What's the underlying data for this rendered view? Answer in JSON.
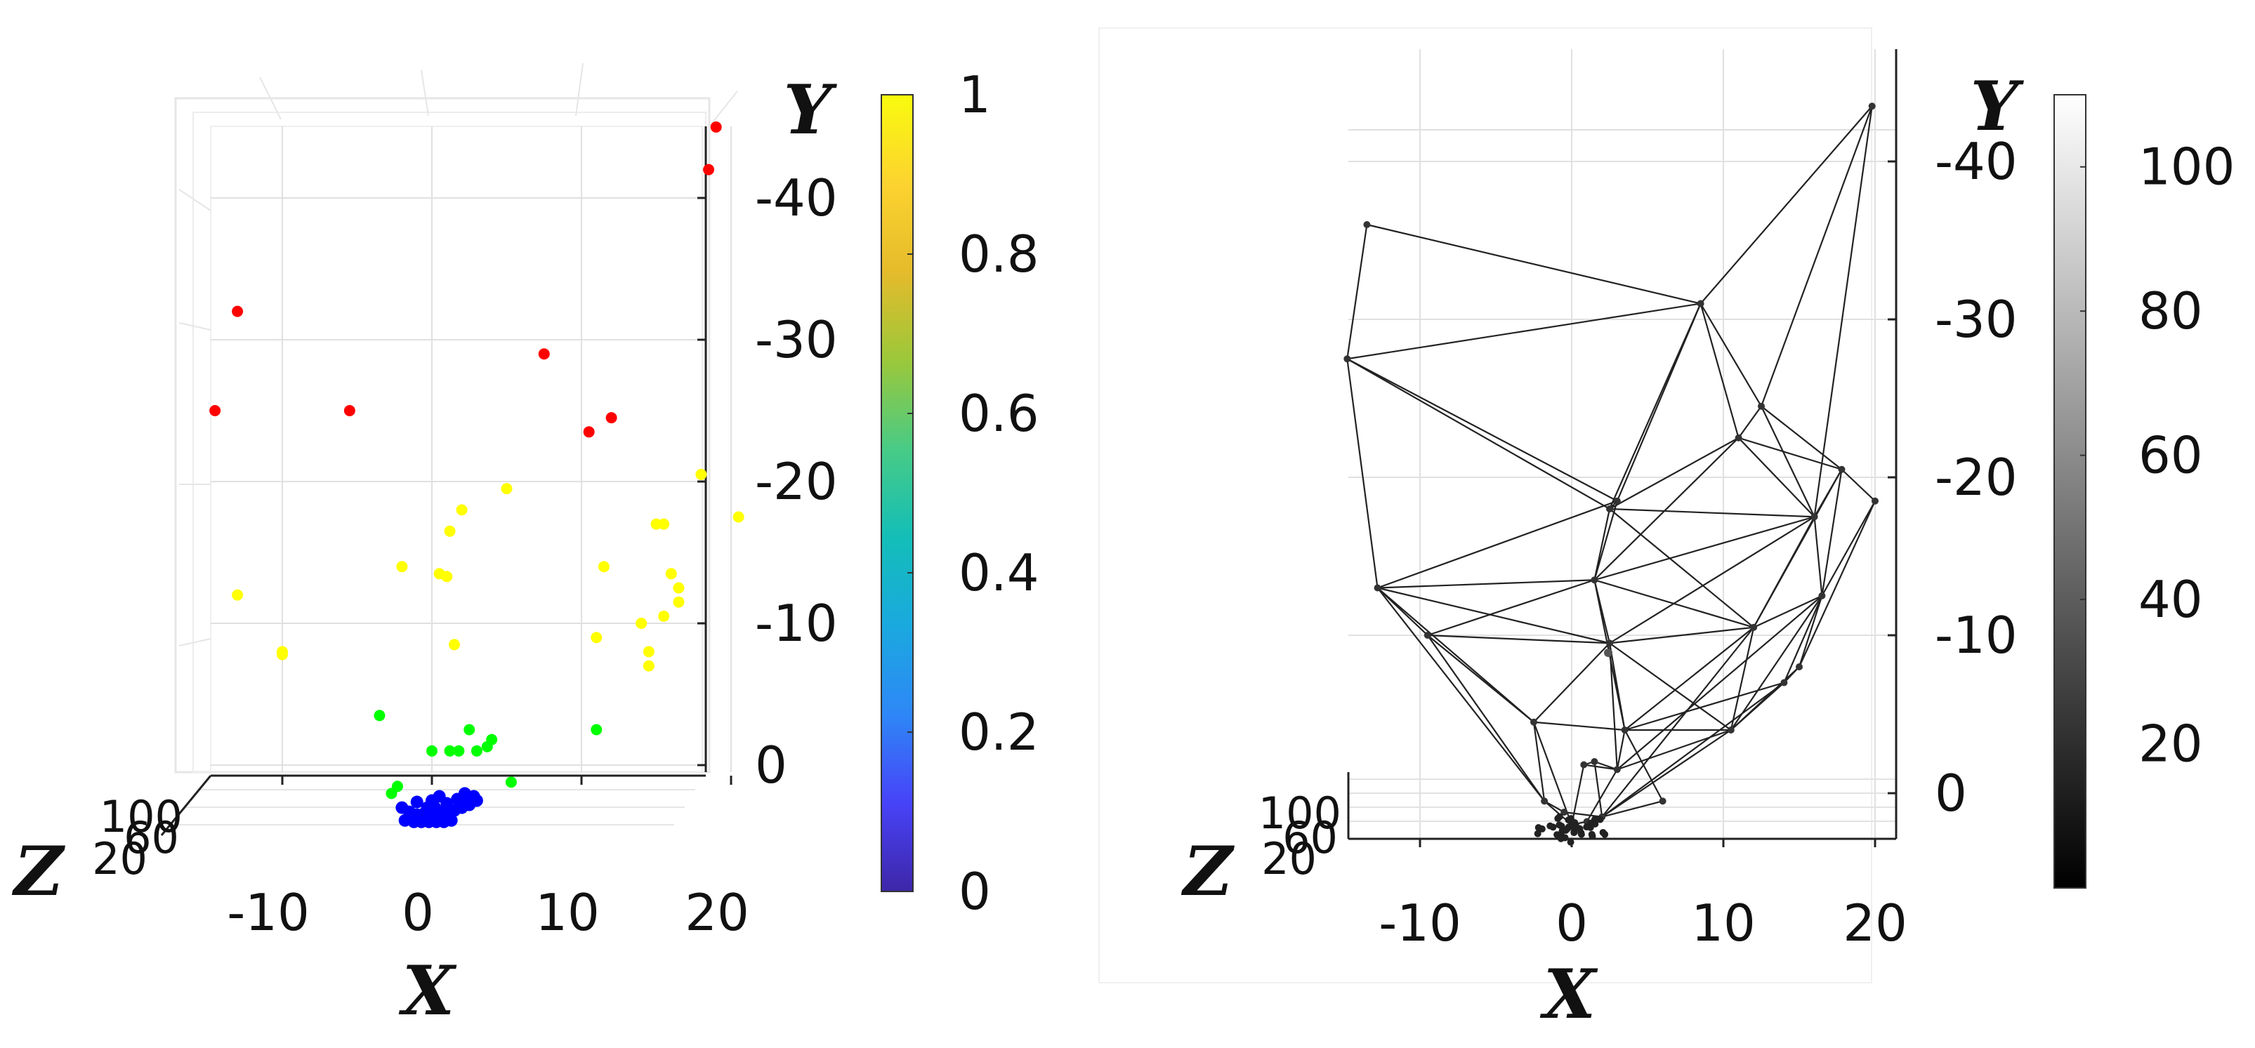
{
  "colors": {
    "red": "#ff0000",
    "yellow": "#ffff00",
    "green": "#00ff00",
    "blue": "#0000ff",
    "edge": "#222222",
    "grid": "#e0e0e0",
    "parula": [
      "#3e26a8",
      "#4743f8",
      "#2e87f7",
      "#1aa9df",
      "#13beb8",
      "#48cb86",
      "#9bc83a",
      "#e5bb2b",
      "#fcd32f",
      "#f9fb0e"
    ]
  },
  "chart_data": [
    {
      "type": "scatter",
      "view": "3d-top",
      "xlabel": "X",
      "ylabel": "Y",
      "zlabel": "Z",
      "xlim": [
        -15,
        20
      ],
      "ylim": [
        -46,
        0
      ],
      "y_direction": "reversed",
      "x_ticks": [
        -10,
        0,
        10,
        20
      ],
      "y_ticks": [
        -40,
        -30,
        -20,
        -10,
        0
      ],
      "z_ticks": [
        100,
        60,
        20
      ],
      "grid": true,
      "colorbar": {
        "colormap": "parula",
        "range": [
          0,
          1
        ],
        "ticks": [
          0,
          0.2,
          0.4,
          0.6,
          0.8,
          1
        ],
        "tick_labels": [
          "0",
          "0.2",
          "0.4",
          "0.6",
          "0.8",
          "1"
        ]
      },
      "series": [
        {
          "color": "red",
          "points": [
            [
              19,
              -45
            ],
            [
              18.5,
              -42
            ],
            [
              -13,
              -32
            ],
            [
              -14.5,
              -25
            ],
            [
              -5.5,
              -25
            ],
            [
              7.5,
              -29
            ],
            [
              12,
              -24.5
            ],
            [
              10.5,
              -23.5
            ]
          ]
        },
        {
          "color": "yellow",
          "points": [
            [
              18,
              -20.5
            ],
            [
              20.5,
              -17.5
            ],
            [
              5,
              -19.5
            ],
            [
              2,
              -18
            ],
            [
              1.2,
              -16.5
            ],
            [
              15,
              -17
            ],
            [
              15.5,
              -17
            ],
            [
              11.5,
              -14
            ],
            [
              -2,
              -14
            ],
            [
              0.5,
              -13.5
            ],
            [
              1,
              -13.3
            ],
            [
              -13,
              -12
            ],
            [
              16,
              -13.5
            ],
            [
              16.5,
              -12.5
            ],
            [
              16.5,
              -11.5
            ],
            [
              15.5,
              -10.5
            ],
            [
              14,
              -10
            ],
            [
              11,
              -9
            ],
            [
              -10,
              -8
            ],
            [
              -10,
              -7.8
            ],
            [
              1.5,
              -8.5
            ],
            [
              14.5,
              -8
            ],
            [
              14.5,
              -7
            ]
          ]
        },
        {
          "color": "green",
          "points": [
            [
              -3.5,
              -3.5
            ],
            [
              11,
              -2.5
            ],
            [
              2.5,
              -2.5
            ],
            [
              4,
              -1.8
            ],
            [
              3.7,
              -1.3
            ],
            [
              3,
              -1
            ],
            [
              0,
              -1
            ],
            [
              1.2,
              -1
            ],
            [
              1.8,
              -1
            ],
            [
              5.3,
              1.2
            ],
            [
              -2.3,
              1.5
            ],
            [
              -2.7,
              2
            ]
          ]
        },
        {
          "color": "blue",
          "points": [
            [
              -2,
              3
            ],
            [
              -1.5,
              3.3
            ],
            [
              -1,
              3.5
            ],
            [
              -0.5,
              3.4
            ],
            [
              0,
              3.5
            ],
            [
              0.5,
              3.3
            ],
            [
              1,
              3.4
            ],
            [
              1.5,
              3.2
            ],
            [
              2,
              3
            ],
            [
              2.5,
              2.8
            ],
            [
              3,
              2.5
            ],
            [
              -1.8,
              3.9
            ],
            [
              -1.2,
              4
            ],
            [
              -0.7,
              4
            ],
            [
              -0.2,
              4
            ],
            [
              0.3,
              4
            ],
            [
              0.8,
              4
            ],
            [
              1.3,
              3.9
            ],
            [
              2.2,
              2
            ],
            [
              2.8,
              2.2
            ],
            [
              -1,
              2.6
            ],
            [
              1,
              2.7
            ],
            [
              0,
              2.5
            ],
            [
              -0.3,
              3
            ],
            [
              0.2,
              3
            ],
            [
              1.7,
              2.4
            ],
            [
              2.4,
              2.5
            ],
            [
              0.5,
              2.2
            ]
          ]
        }
      ]
    },
    {
      "type": "network",
      "view": "3d-top",
      "xlabel": "X",
      "ylabel": "Y",
      "zlabel": "Z",
      "xlim": [
        -15,
        20
      ],
      "ylim": [
        -46,
        2
      ],
      "y_direction": "reversed",
      "x_ticks": [
        -10,
        0,
        10,
        20
      ],
      "y_ticks": [
        -40,
        -30,
        -20,
        -10,
        0
      ],
      "z_ticks": [
        100,
        60,
        20
      ],
      "grid": true,
      "colorbar": {
        "colormap": "gray",
        "range": [
          0,
          110
        ],
        "ticks": [
          20,
          40,
          60,
          80,
          100
        ],
        "tick_labels": [
          "20",
          "40",
          "60",
          "80",
          "100"
        ]
      },
      "nodes": [
        [
          19.8,
          -43.5
        ],
        [
          -13.5,
          -36
        ],
        [
          -14.8,
          -27.5
        ],
        [
          8.5,
          -31
        ],
        [
          12.5,
          -24.5
        ],
        [
          11,
          -22.5
        ],
        [
          17.8,
          -20.5
        ],
        [
          20,
          -18.5
        ],
        [
          16,
          -17.5
        ],
        [
          3,
          -18.5
        ],
        [
          2.5,
          -18
        ],
        [
          -12.8,
          -13
        ],
        [
          1.5,
          -13.5
        ],
        [
          16.5,
          -12.5
        ],
        [
          12,
          -10.5
        ],
        [
          -9.5,
          -10
        ],
        [
          2.5,
          -9.5
        ],
        [
          15,
          -8
        ],
        [
          14,
          -7
        ],
        [
          10.5,
          -4
        ],
        [
          -2.5,
          -4.5
        ],
        [
          3.5,
          -4
        ],
        [
          3,
          -1.5
        ],
        [
          1.5,
          -2
        ],
        [
          0.8,
          -1.8
        ],
        [
          6,
          0.5
        ],
        [
          -1.8,
          0.5
        ],
        [
          0,
          2
        ],
        [
          1,
          1.8
        ],
        [
          2,
          1.5
        ],
        [
          -0.5,
          1.2
        ]
      ],
      "edges": [
        [
          0,
          3
        ],
        [
          0,
          4
        ],
        [
          0,
          8
        ],
        [
          1,
          2
        ],
        [
          1,
          3
        ],
        [
          2,
          3
        ],
        [
          2,
          9
        ],
        [
          2,
          10
        ],
        [
          2,
          11
        ],
        [
          3,
          4
        ],
        [
          3,
          5
        ],
        [
          3,
          9
        ],
        [
          3,
          10
        ],
        [
          4,
          5
        ],
        [
          4,
          6
        ],
        [
          4,
          8
        ],
        [
          5,
          6
        ],
        [
          5,
          8
        ],
        [
          5,
          10
        ],
        [
          5,
          12
        ],
        [
          6,
          7
        ],
        [
          6,
          8
        ],
        [
          6,
          13
        ],
        [
          7,
          13
        ],
        [
          7,
          17
        ],
        [
          8,
          10
        ],
        [
          8,
          12
        ],
        [
          8,
          13
        ],
        [
          8,
          14
        ],
        [
          9,
          10
        ],
        [
          9,
          11
        ],
        [
          9,
          12
        ],
        [
          10,
          12
        ],
        [
          10,
          14
        ],
        [
          11,
          12
        ],
        [
          11,
          15
        ],
        [
          11,
          16
        ],
        [
          11,
          20
        ],
        [
          12,
          14
        ],
        [
          12,
          15
        ],
        [
          12,
          16
        ],
        [
          13,
          14
        ],
        [
          13,
          17
        ],
        [
          13,
          18
        ],
        [
          13,
          19
        ],
        [
          14,
          16
        ],
        [
          14,
          19
        ],
        [
          14,
          21
        ],
        [
          15,
          16
        ],
        [
          15,
          20
        ],
        [
          15,
          26
        ],
        [
          16,
          19
        ],
        [
          16,
          20
        ],
        [
          16,
          21
        ],
        [
          17,
          18
        ],
        [
          17,
          19
        ],
        [
          18,
          19
        ],
        [
          18,
          21
        ],
        [
          19,
          21
        ],
        [
          19,
          22
        ],
        [
          20,
          21
        ],
        [
          20,
          26
        ],
        [
          20,
          27
        ],
        [
          21,
          22
        ],
        [
          21,
          25
        ],
        [
          22,
          23
        ],
        [
          22,
          24
        ],
        [
          22,
          28
        ],
        [
          23,
          24
        ],
        [
          23,
          29
        ],
        [
          24,
          27
        ],
        [
          25,
          29
        ],
        [
          26,
          27
        ],
        [
          26,
          30
        ],
        [
          27,
          28
        ],
        [
          28,
          29
        ],
        [
          29,
          30
        ],
        [
          19,
          29
        ],
        [
          13,
          22
        ],
        [
          14,
          29
        ],
        [
          8,
          16
        ],
        [
          6,
          14
        ],
        [
          12,
          21
        ],
        [
          16,
          22
        ],
        [
          11,
          26
        ],
        [
          18,
          29
        ]
      ]
    }
  ]
}
